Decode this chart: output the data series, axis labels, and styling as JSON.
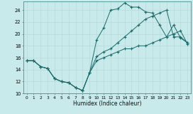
{
  "xlabel": "Humidex (Indice chaleur)",
  "bg_color": "#c8eaea",
  "grid_color": "#b8dada",
  "line_color": "#1a6b6b",
  "line1_x": [
    0,
    1,
    2,
    3,
    4,
    5,
    6,
    7,
    8,
    9,
    10,
    11,
    12,
    13,
    14,
    15,
    16,
    17,
    18,
    19,
    20,
    21,
    22,
    23
  ],
  "line1_y": [
    15.5,
    15.5,
    14.5,
    14.2,
    12.5,
    12.0,
    11.8,
    11.0,
    10.5,
    13.5,
    19.0,
    21.0,
    24.0,
    24.2,
    25.2,
    24.5,
    24.5,
    23.7,
    23.5,
    21.5,
    19.5,
    21.5,
    19.3,
    18.5
  ],
  "line2_x": [
    0,
    1,
    2,
    3,
    4,
    5,
    6,
    7,
    8,
    9,
    10,
    11,
    12,
    13,
    14,
    15,
    16,
    17,
    18,
    19,
    20,
    21,
    22,
    23
  ],
  "line2_y": [
    15.5,
    15.5,
    14.5,
    14.2,
    12.5,
    12.0,
    11.8,
    11.0,
    10.5,
    13.5,
    16.2,
    17.0,
    17.5,
    18.5,
    19.5,
    20.5,
    21.5,
    22.5,
    23.0,
    23.5,
    24.0,
    19.5,
    19.5,
    18.5
  ],
  "line3_x": [
    0,
    1,
    2,
    3,
    4,
    5,
    6,
    7,
    8,
    9,
    10,
    11,
    12,
    13,
    14,
    15,
    16,
    17,
    18,
    19,
    20,
    21,
    22,
    23
  ],
  "line3_y": [
    15.5,
    15.5,
    14.5,
    14.2,
    12.5,
    12.0,
    11.8,
    11.0,
    10.5,
    13.5,
    15.5,
    16.0,
    16.5,
    17.0,
    17.5,
    17.5,
    18.0,
    18.0,
    18.5,
    19.0,
    19.5,
    20.0,
    20.5,
    18.3
  ],
  "ylim": [
    10,
    25
  ],
  "xlim": [
    -0.5,
    23.5
  ],
  "yticks": [
    10,
    12,
    14,
    16,
    18,
    20,
    22,
    24
  ],
  "xticks": [
    0,
    1,
    2,
    3,
    4,
    5,
    6,
    7,
    8,
    9,
    10,
    11,
    12,
    13,
    14,
    15,
    16,
    17,
    18,
    19,
    20,
    21,
    22,
    23
  ]
}
